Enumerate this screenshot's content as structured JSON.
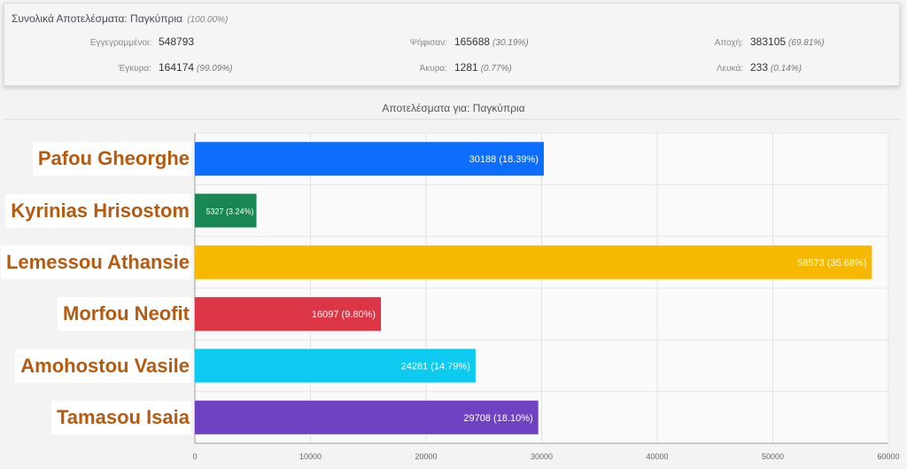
{
  "summary": {
    "title": "Συνολικά Αποτελέσματα: Παγκύπρια",
    "title_pct": "(100.00%)",
    "rows": [
      [
        {
          "label": "Εγγεγραμμένοι:",
          "value": "548793",
          "pct": ""
        },
        {
          "label": "Ψήφισαν:",
          "value": "165688",
          "pct": "(30.19%)"
        },
        {
          "label": "Αποχή:",
          "value": "383105",
          "pct": "(69.81%)"
        }
      ],
      [
        {
          "label": "Έγκυρα:",
          "value": "164174",
          "pct": "(99.09%)"
        },
        {
          "label": "Άκυρα:",
          "value": "1281",
          "pct": "(0.77%)"
        },
        {
          "label": "Λευκά:",
          "value": "233",
          "pct": "(0.14%)"
        }
      ]
    ]
  },
  "chart_data": {
    "type": "bar",
    "orientation": "horizontal",
    "title": "Αποτελέσματα για: Παγκύπρια",
    "categories": [
      "Pafou Gheorghe",
      "Kyrinias Hrisostom",
      "Lemessou Athansie",
      "Morfou Neofit",
      "Amohostou Vasile",
      "Tamasou Isaia"
    ],
    "values": [
      30188,
      5327,
      58573,
      16097,
      24281,
      29708
    ],
    "data_labels": [
      "30188 (18.39%)",
      "5327 (3.24%)",
      "58573 (35.68%)",
      "16097 (9.80%)",
      "24281 (14.79%)",
      "29708 (18.10%)"
    ],
    "colors": [
      "#0d6efd",
      "#198754",
      "#f6b800",
      "#dc3545",
      "#0dcaf0",
      "#6f42c1"
    ],
    "xlim": [
      0,
      60000
    ],
    "xticks": [
      0,
      10000,
      20000,
      30000,
      40000,
      50000,
      60000
    ],
    "grid": true
  }
}
